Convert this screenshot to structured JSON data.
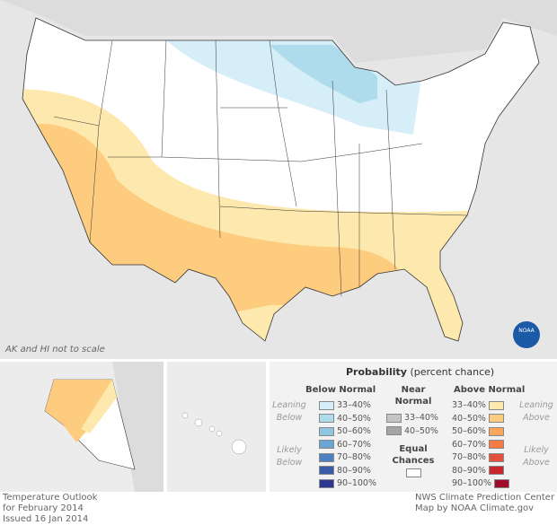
{
  "map": {
    "note": "AK and HI not to scale",
    "logo_text": "NOAA"
  },
  "legend": {
    "title": "Probability",
    "title_suffix": "(percent chance)",
    "below_header": "Below Normal",
    "near_header_1": "Near",
    "near_header_2": "Normal",
    "above_header": "Above Normal",
    "leaning_below": [
      "Leaning",
      "Below"
    ],
    "likely_below": [
      "Likely",
      "Below"
    ],
    "leaning_above": [
      "Leaning",
      "Above"
    ],
    "likely_above": [
      "Likely",
      "Above"
    ],
    "below": [
      {
        "label": "33–40%",
        "color": "#d6eef7"
      },
      {
        "label": "40–50%",
        "color": "#afdcec"
      },
      {
        "label": "50–60%",
        "color": "#8ec6e0"
      },
      {
        "label": "60–70%",
        "color": "#6aa6d2"
      },
      {
        "label": "70–80%",
        "color": "#4d80c0"
      },
      {
        "label": "80–90%",
        "color": "#3a5aaa"
      },
      {
        "label": "90–100%",
        "color": "#2c3590"
      }
    ],
    "near": [
      {
        "label": "33–40%",
        "color": "#c4c4c4"
      },
      {
        "label": "40–50%",
        "color": "#a4a4a4"
      }
    ],
    "equal_1": "Equal",
    "equal_2": "Chances",
    "above": [
      {
        "label": "33–40%",
        "color": "#fde8ad"
      },
      {
        "label": "40–50%",
        "color": "#fdcc7e"
      },
      {
        "label": "50–60%",
        "color": "#fba65a"
      },
      {
        "label": "60–70%",
        "color": "#f57a45"
      },
      {
        "label": "70–80%",
        "color": "#e4513a"
      },
      {
        "label": "80–90%",
        "color": "#c9262b"
      },
      {
        "label": "90–100%",
        "color": "#a00b2a"
      }
    ]
  },
  "footer": {
    "left": [
      "Temperature Outlook",
      "for February 2014",
      "Issued 16 Jan 2014"
    ],
    "right": [
      "NWS Climate Prediction Center",
      "Map by NOAA Climate.gov"
    ]
  }
}
